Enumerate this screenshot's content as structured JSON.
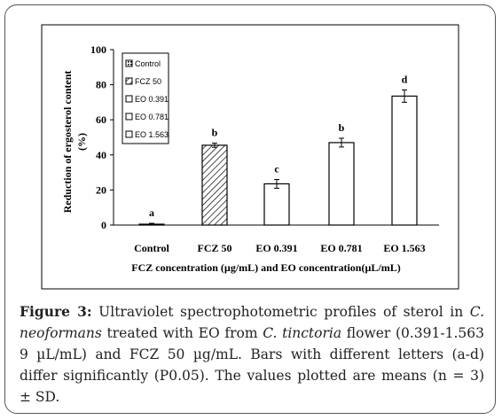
{
  "figure_label": "Figure 3:",
  "caption_parts": [
    {
      "t": " Ultraviolet spectrophotometric profiles of sterol in ",
      "i": false
    },
    {
      "t": "C. neoformans",
      "i": true
    },
    {
      "t": " treated with EO from ",
      "i": false
    },
    {
      "t": "C. tinctoria",
      "i": true
    },
    {
      "t": " flower (0.391-1.563 9 µL/mL) and FCZ 50 µg/mL. Bars with different letters (a-d) differ significantly (P0.05). The values plotted are means (n = 3) ± SD.",
      "i": false
    }
  ],
  "colors": {
    "bar_stroke": "#000000",
    "bar_fill": "#ffffff",
    "frame": "#555555"
  },
  "chart_data": {
    "type": "bar",
    "categories": [
      "Control",
      "FCZ 50",
      "EO 0.391",
      "EO 0.781",
      "EO 1.563"
    ],
    "values": [
      0.5,
      45.5,
      23.5,
      47,
      73.5
    ],
    "errors": [
      0.5,
      1.2,
      2.5,
      2.5,
      3.5
    ],
    "letters": [
      "a",
      "b",
      "c",
      "b",
      "d"
    ],
    "patterns": [
      "dotted",
      "hatched",
      "none",
      "none",
      "none"
    ],
    "ylabel_line1": "Reduction of ergosterol content",
    "ylabel_line2": "(%)",
    "xlabel": "FCZ concentration (µg/mL) and EO concentration(µL/mL)",
    "ylim": [
      0,
      100
    ],
    "yticks": [
      "0",
      "20",
      "40",
      "60",
      "80",
      "100"
    ],
    "legend": [
      "Control",
      "FCZ 50",
      "EO 0.391",
      "EO 0.781",
      "EO 1.563"
    ],
    "legend_position": "top-left",
    "grid": false
  }
}
